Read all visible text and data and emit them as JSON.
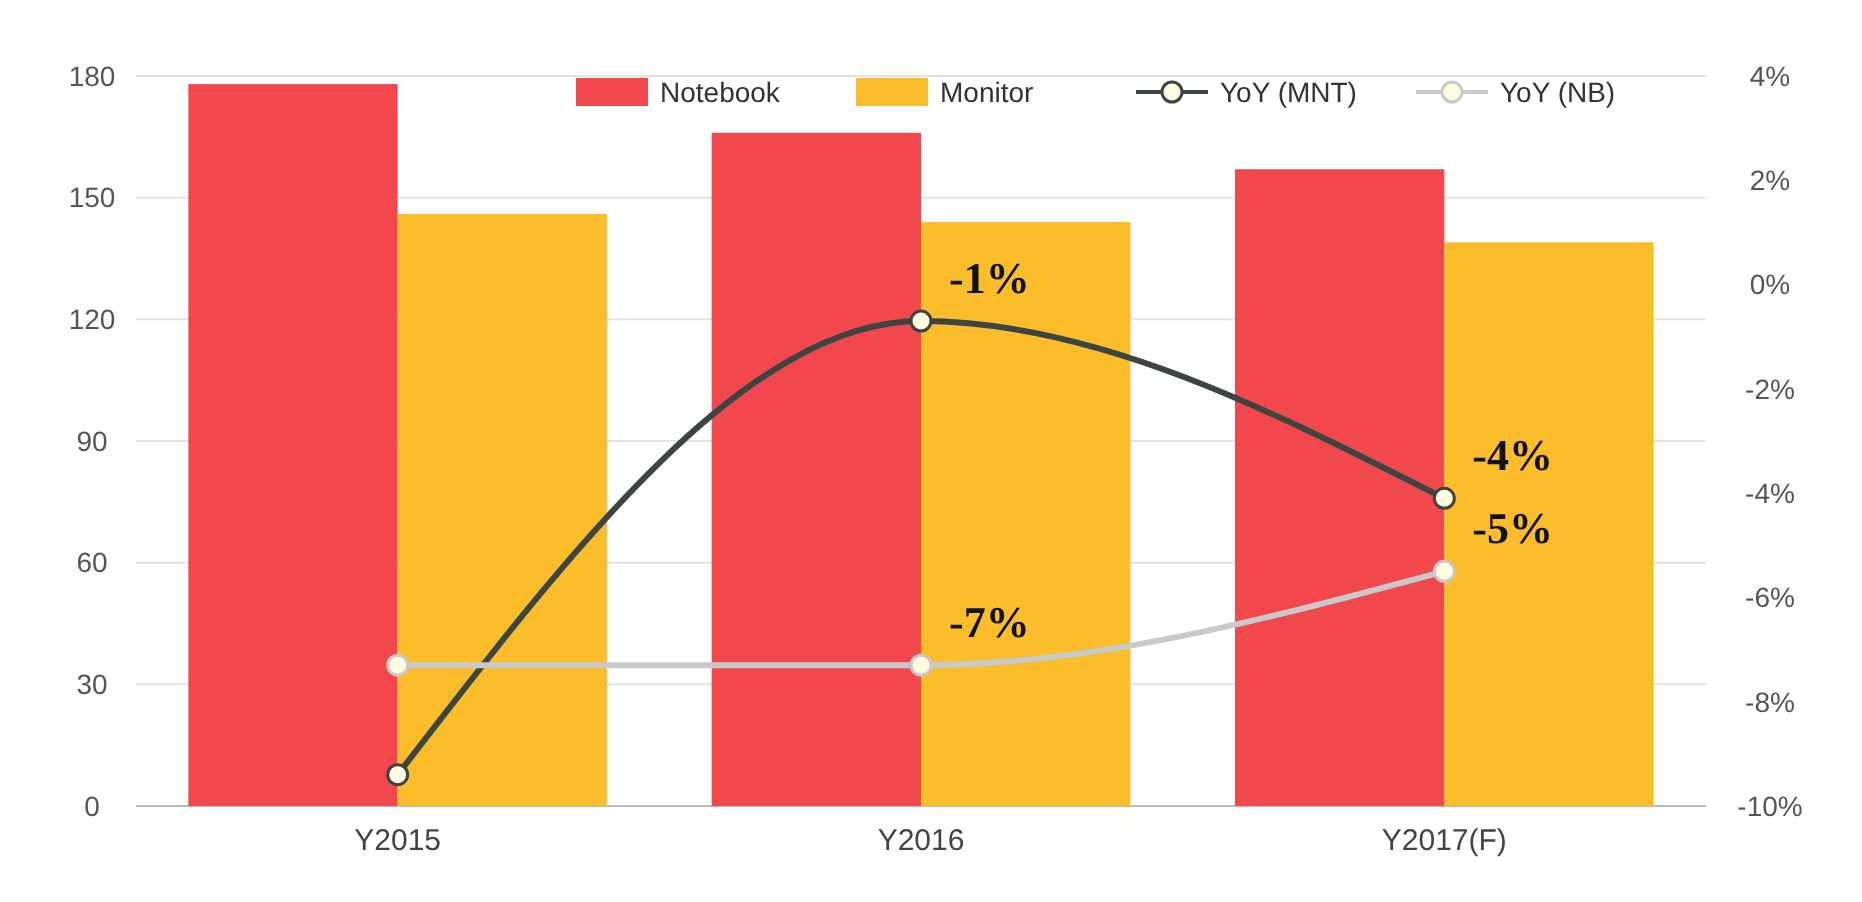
{
  "chart_data": {
    "type": "bar",
    "categories": [
      "Y2015",
      "Y2016",
      "Y2017(F)"
    ],
    "series": [
      {
        "name": "Notebook",
        "color": "#f2474d",
        "values": [
          178,
          166,
          157
        ]
      },
      {
        "name": "Monitor",
        "color": "#fbbd29",
        "values": [
          146,
          144,
          139
        ]
      },
      {
        "name": "YoY (MNT)",
        "type": "line",
        "axis": "y2",
        "color": "#3b4542",
        "values": [
          -9.4,
          -0.7,
          -4.1
        ],
        "value_labels": [
          null,
          "-1%",
          "-4%"
        ]
      },
      {
        "name": "YoY (NB)",
        "type": "line",
        "axis": "y2",
        "color": "#c9c9c9",
        "values": [
          -7.3,
          -7.3,
          -5.5
        ],
        "value_labels": [
          null,
          "-7%",
          "-5%"
        ]
      }
    ],
    "ylim": [
      0,
      180
    ],
    "yticks": [
      0,
      30,
      60,
      90,
      120,
      150,
      180
    ],
    "y2lim": [
      -10,
      4
    ],
    "y2ticks": [
      {
        "value": -10,
        "label": "-10%"
      },
      {
        "value": -8,
        "label": "-8%"
      },
      {
        "value": -6,
        "label": "-6%"
      },
      {
        "value": -4,
        "label": "-4%"
      },
      {
        "value": -2,
        "label": "-2%"
      },
      {
        "value": 0,
        "label": "0%"
      },
      {
        "value": 2,
        "label": "2%"
      },
      {
        "value": 4,
        "label": "4%"
      }
    ],
    "grid": "y",
    "legend": "top",
    "marker": "circle"
  }
}
